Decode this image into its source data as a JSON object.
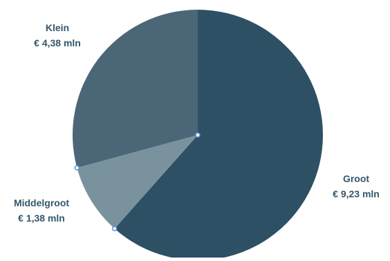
{
  "chart_data": {
    "type": "pie",
    "title": "",
    "series": [
      {
        "values": [
          9.23,
          1.38,
          4.38
        ],
        "categories": [
          "Groot",
          "Middelgroot",
          "Klein"
        ],
        "data_labels": [
          "€ 9,23 mln",
          "€ 1,38 mln",
          "€ 4,38 mln"
        ],
        "colors": [
          "#2d5064",
          "#7a929d",
          "#4b6777"
        ]
      }
    ],
    "legend": "none",
    "label_color": "#35566a",
    "start_angle_deg": 0,
    "direction": "clockwise"
  }
}
